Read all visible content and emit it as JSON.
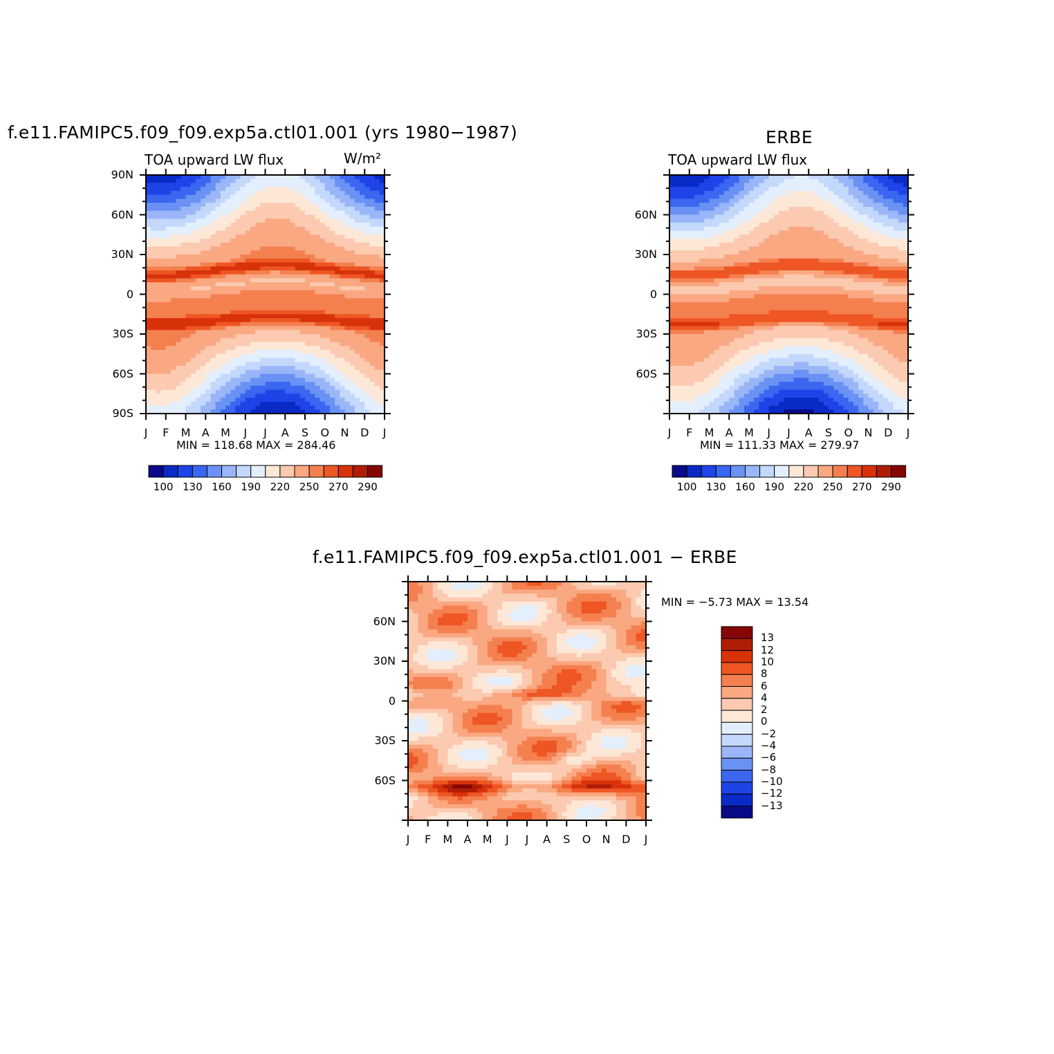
{
  "chart_data": [
    {
      "type": "heatmap",
      "title": "f.e11.FAMIPC5.f09_f09.exp5a.ctl01.001 (yrs 1980−1987)",
      "subtitle_left": "TOA upward LW flux",
      "units": "W/m²",
      "x_ticks": [
        "J",
        "F",
        "M",
        "A",
        "M",
        "J",
        "J",
        "A",
        "S",
        "O",
        "N",
        "D",
        "J"
      ],
      "y_ticks": [
        "90N",
        "60N",
        "30N",
        "0",
        "30S",
        "60S",
        "90S"
      ],
      "ylim": [
        -90,
        90
      ],
      "stats": "MIN = 118.68 MAX = 284.46",
      "min": 118.68,
      "max": 284.46,
      "colorbar_labels": [
        "100",
        "130",
        "160",
        "190",
        "220",
        "250",
        "270",
        "290"
      ]
    },
    {
      "type": "heatmap",
      "title": "ERBE",
      "subtitle_left": "TOA upward LW flux",
      "x_ticks": [
        "J",
        "F",
        "M",
        "A",
        "M",
        "J",
        "J",
        "A",
        "S",
        "O",
        "N",
        "D",
        "J"
      ],
      "y_ticks": [
        "60N",
        "30N",
        "0",
        "30S",
        "60S"
      ],
      "ylim": [
        -90,
        90
      ],
      "stats": "MIN = 111.33 MAX = 279.97",
      "min": 111.33,
      "max": 279.97,
      "colorbar_labels": [
        "100",
        "130",
        "160",
        "190",
        "220",
        "250",
        "270",
        "290"
      ]
    },
    {
      "type": "heatmap",
      "title": "f.e11.FAMIPC5.f09_f09.exp5a.ctl01.001 − ERBE",
      "x_ticks": [
        "J",
        "F",
        "M",
        "A",
        "M",
        "J",
        "J",
        "A",
        "S",
        "O",
        "N",
        "D",
        "J"
      ],
      "y_ticks": [
        "60N",
        "30N",
        "0",
        "30S",
        "60S"
      ],
      "ylim": [
        -90,
        90
      ],
      "stats": "MIN =   −5.73 MAX =   13.54",
      "min": -5.73,
      "max": 13.54,
      "colorbar_labels": [
        "13",
        "12",
        "10",
        "8",
        "6",
        "4",
        "2",
        "0",
        "−2",
        "−4",
        "−6",
        "−8",
        "−10",
        "−12",
        "−13"
      ]
    }
  ],
  "palette_abs": [
    "#0a0a88",
    "#0a2ac6",
    "#1e44e8",
    "#3a66f0",
    "#6a92f4",
    "#9ab6f8",
    "#c4d8fc",
    "#e4effe",
    "#fde8d8",
    "#fccab0",
    "#f9a882",
    "#f5804f",
    "#ee5624",
    "#d8320a",
    "#b01c06",
    "#860606"
  ],
  "palette_diff": [
    "#860606",
    "#b01c06",
    "#d8320a",
    "#ee5624",
    "#f5804f",
    "#f9a882",
    "#fccab0",
    "#fde8d8",
    "#e4effe",
    "#c4d8fc",
    "#9ab6f8",
    "#6a92f4",
    "#3a66f0",
    "#1e44e8",
    "#0a2ac6",
    "#0a0a88"
  ]
}
